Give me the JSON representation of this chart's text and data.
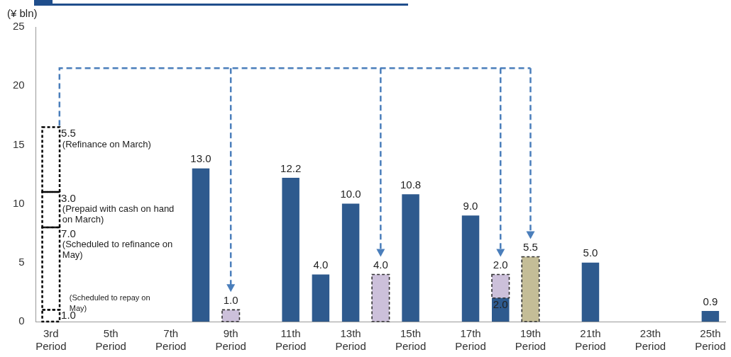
{
  "chart_data": {
    "type": "bar",
    "stacked": true,
    "ylabel": "(¥ bln)",
    "categories": [
      "3rd Period",
      null,
      "5th Period",
      null,
      "7th Period",
      null,
      "9th Period",
      null,
      "11th Period",
      null,
      "13th Period",
      null,
      "15th Period",
      null,
      "17th Period",
      null,
      "19th Period",
      null,
      "21th Period",
      null,
      "23th Period",
      null,
      "25th Period"
    ],
    "ylim": [
      0,
      25
    ],
    "yticks": [
      0,
      5,
      10,
      15,
      20,
      25
    ],
    "grid": false,
    "legend": false,
    "series": [
      {
        "color": "#2e5a8e",
        "values": [
          null,
          null,
          null,
          null,
          null,
          13.0,
          null,
          null,
          12.2,
          4.0,
          10.0,
          null,
          10.8,
          null,
          9.0,
          2.0,
          null,
          null,
          5.0,
          null,
          null,
          null,
          0.9
        ],
        "value_labels": [
          null,
          null,
          null,
          null,
          null,
          "13.0",
          null,
          null,
          "12.2",
          "4.0",
          "10.0",
          null,
          "10.8",
          null,
          "9.0",
          "2.0",
          null,
          null,
          "5.0",
          null,
          null,
          null,
          "0.9"
        ]
      },
      {
        "color": "#ccc0da",
        "line_style": "dashed",
        "values": [
          null,
          null,
          null,
          null,
          null,
          null,
          1.0,
          null,
          null,
          null,
          null,
          4.0,
          null,
          null,
          null,
          2.0,
          null,
          null,
          null,
          null,
          null,
          null,
          null
        ],
        "value_labels": [
          null,
          null,
          null,
          null,
          null,
          null,
          "1.0",
          null,
          null,
          null,
          null,
          "4.0",
          null,
          null,
          null,
          "2.0",
          null,
          null,
          null,
          null,
          null,
          null,
          null
        ]
      },
      {
        "color": "#c4bd97",
        "line_style": "dashed",
        "values": [
          null,
          null,
          null,
          null,
          null,
          null,
          null,
          null,
          null,
          null,
          null,
          null,
          null,
          null,
          null,
          null,
          5.5,
          null,
          null,
          null,
          null,
          null,
          null
        ],
        "value_labels": [
          null,
          null,
          null,
          null,
          null,
          null,
          null,
          null,
          null,
          null,
          null,
          null,
          null,
          null,
          null,
          null,
          "5.5",
          null,
          null,
          null,
          null,
          null,
          null
        ]
      },
      {
        "color": "#000000",
        "line_style": "dashed",
        "values": [
          1.0,
          null,
          null,
          null,
          null,
          null,
          null,
          null,
          null,
          null,
          null,
          null,
          null,
          null,
          null,
          null,
          null,
          null,
          null,
          null,
          null,
          null,
          null
        ],
        "value_labels": [
          "1.0",
          null,
          null,
          null,
          null,
          null,
          null,
          null,
          null,
          null,
          null,
          null,
          null,
          null,
          null,
          null,
          null,
          null,
          null,
          null,
          null,
          null,
          null
        ]
      },
      {
        "color": "#000000",
        "line_style": "dashed",
        "values": [
          7.0,
          null,
          null,
          null,
          null,
          null,
          null,
          null,
          null,
          null,
          null,
          null,
          null,
          null,
          null,
          null,
          null,
          null,
          null,
          null,
          null,
          null,
          null
        ],
        "value_labels": [
          "7.0",
          null,
          null,
          null,
          null,
          null,
          null,
          null,
          null,
          null,
          null,
          null,
          null,
          null,
          null,
          null,
          null,
          null,
          null,
          null,
          null,
          null,
          null
        ]
      },
      {
        "color": "#000000",
        "line_style": "dashed",
        "values": [
          3.0,
          null,
          null,
          null,
          null,
          null,
          null,
          null,
          null,
          null,
          null,
          null,
          null,
          null,
          null,
          null,
          null,
          null,
          null,
          null,
          null,
          null,
          null
        ],
        "value_labels": [
          "3.0",
          null,
          null,
          null,
          null,
          null,
          null,
          null,
          null,
          null,
          null,
          null,
          null,
          null,
          null,
          null,
          null,
          null,
          null,
          null,
          null,
          null,
          null
        ]
      },
      {
        "color": "#000000",
        "line_style": "dashed",
        "values": [
          5.5,
          null,
          null,
          null,
          null,
          null,
          null,
          null,
          null,
          null,
          null,
          null,
          null,
          null,
          null,
          null,
          null,
          null,
          null,
          null,
          null,
          null,
          null
        ],
        "value_labels": [
          "5.5",
          null,
          null,
          null,
          null,
          null,
          null,
          null,
          null,
          null,
          null,
          null,
          null,
          null,
          null,
          null,
          null,
          null,
          null,
          null,
          null,
          null,
          null
        ]
      }
    ],
    "annotations": [
      {
        "text": "(Refinance on March)",
        "x": "3rd Period",
        "y": 16.5
      },
      {
        "text": "(Prepaid with cash on hand on March)",
        "x": "3rd Period",
        "y": 11.0
      },
      {
        "text": "(Scheduled to refinance on May)",
        "x": "3rd Period",
        "y": 8.0
      },
      {
        "text": "(Scheduled to repay on May)",
        "x": "3rd Period",
        "y": 1.0
      }
    ]
  }
}
